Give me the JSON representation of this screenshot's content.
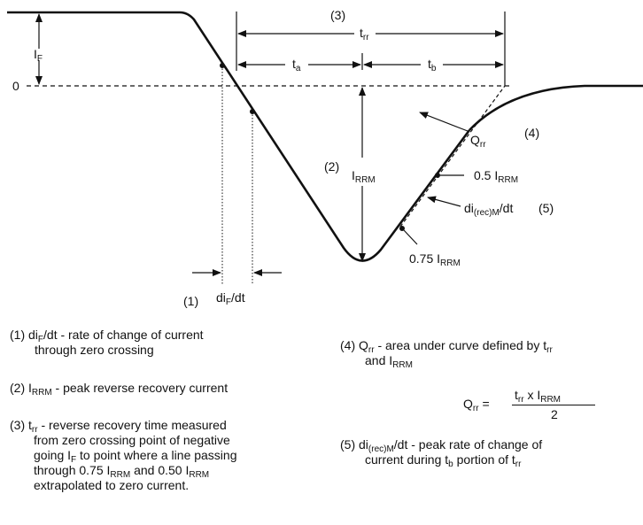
{
  "labels": {
    "if": "I",
    "if_sub": "F",
    "zero": "0",
    "n3": "(3)",
    "trr": "t",
    "trr_sub": "rr",
    "ta": "t",
    "ta_sub": "a",
    "tb": "t",
    "tb_sub": "b",
    "n2": "(2)",
    "irrm": "I",
    "irrm_sub": "RRM",
    "qrr": "Q",
    "qrr_sub": "rr",
    "n4": "(4)",
    "p05": "0.5 I",
    "p05_sub": "RRM",
    "direc_pre": "di",
    "direc_sub": "(rec)M",
    "direc_post": "/dt",
    "n5": "(5)",
    "p075": "0.75 I",
    "p075_sub": "RRM",
    "n1": "(1)",
    "dif_pre": "di",
    "dif_sub": "F",
    "dif_post": "/dt"
  },
  "legend": {
    "item1": {
      "pre": "(1) di",
      "sub": "F",
      "post": "/dt - rate of change of current",
      "cont": "through zero crossing"
    },
    "item2": {
      "pre": "(2) I",
      "sub": "RRM",
      "post": " - peak reverse recovery current"
    },
    "item3": {
      "pre": "(3) t",
      "sub1": "rr",
      "l1post": " - reverse recovery time measured",
      "l2": "from zero crossing point of negative",
      "l3pre": "going I",
      "l3sub": "F",
      "l3post": " to point where a line passing",
      "l4pre": "through 0.75 I",
      "l4sub": "RRM",
      "l4mid": " and 0.50 I",
      "l4sub2": "RRM",
      "l5": "extrapolated to zero current."
    },
    "item4": {
      "pre": "(4) Q",
      "sub": "rr",
      "post": " - area under curve defined by t",
      "sub2": "rr",
      "l2pre": "and I",
      "l2sub": "RRM"
    },
    "formula": {
      "lhs": "Q",
      "lhs_sub": "rr",
      "eq": " =",
      "num_pre": "t",
      "num_sub": "rr",
      "num_mid": " x I",
      "num_sub2": "RRM",
      "den": "2"
    },
    "item5": {
      "pre": "(5) di",
      "sub": "(rec)M",
      "post": "/dt - peak rate of change of",
      "l2pre": "current during t",
      "l2sub": "b",
      "l2mid": " portion of t",
      "l2sub2": "rr"
    }
  }
}
